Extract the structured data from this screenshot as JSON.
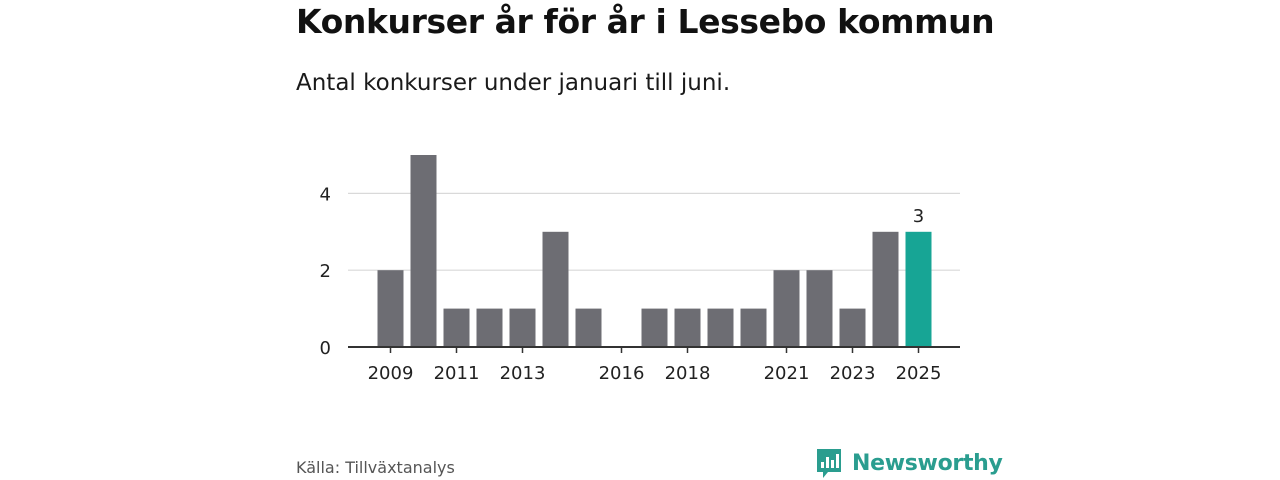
{
  "title": "Konkurser år för år i Lessebo kommun",
  "subtitle": "Antal konkurser under januari till juni.",
  "source": "Källa: Tillväxtanalys",
  "brand": {
    "name": "Newsworthy",
    "color": "#2a9d8f",
    "icon": "newsworthy-bar-chart-icon"
  },
  "colors": {
    "bar": "#6d6d73",
    "highlight": "#17a595",
    "grid": "#d9d9d9",
    "axis": "#333333"
  },
  "chart_data": {
    "type": "bar",
    "categories": [
      "2009",
      "2010",
      "2011",
      "2012",
      "2013",
      "2014",
      "2015",
      "2016",
      "2017",
      "2018",
      "2019",
      "2020",
      "2021",
      "2022",
      "2023",
      "2024",
      "2025"
    ],
    "values": [
      2,
      5,
      1,
      1,
      1,
      3,
      1,
      0,
      1,
      1,
      1,
      1,
      2,
      2,
      1,
      3,
      3
    ],
    "x_tick_labels": [
      "2009",
      "2011",
      "2013",
      "2016",
      "2018",
      "2021",
      "2023",
      "2025"
    ],
    "y_ticks": [
      0,
      2,
      4
    ],
    "ylim": [
      0,
      5
    ],
    "highlight_category": "2025",
    "highlight_label": "3",
    "grid": true,
    "xlabel": "",
    "ylabel": ""
  }
}
